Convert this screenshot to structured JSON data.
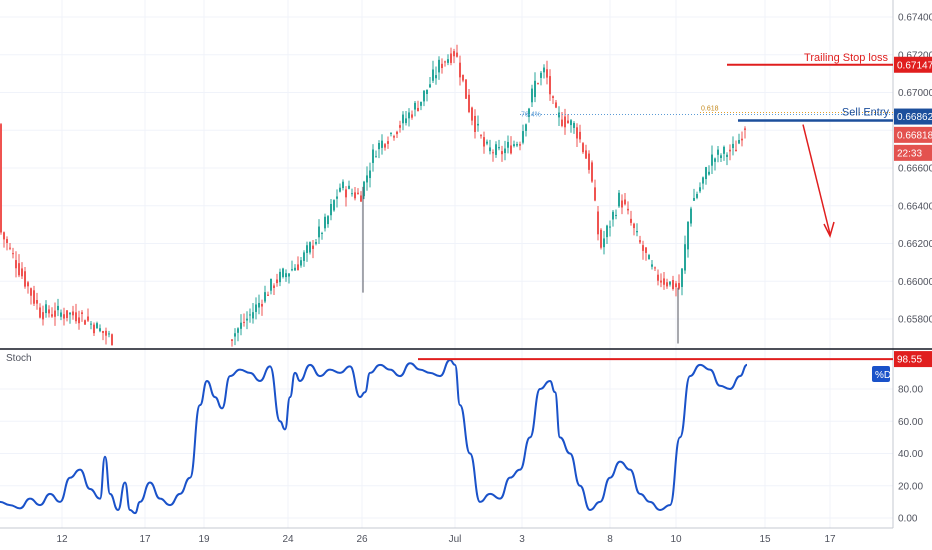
{
  "chart_data": [
    {
      "type": "candlestick",
      "panel": "price",
      "ylim": [
        0.657,
        0.675
      ],
      "y_ticks": [
        "0.67400",
        "0.67200",
        "0.67000",
        "0.66800",
        "0.66600",
        "0.66400",
        "0.66200",
        "0.66000",
        "0.65800"
      ],
      "x_ticks": [
        "12",
        "17",
        "19",
        "24",
        "26",
        "Jul",
        "3",
        "8",
        "10",
        "15",
        "17"
      ],
      "price_path": [
        [
          0,
          0.6627
        ],
        [
          40,
          0.6584
        ],
        [
          80,
          0.6582
        ],
        [
          110,
          0.657
        ],
        [
          230,
          0.657
        ],
        [
          250,
          0.6582
        ],
        [
          275,
          0.66
        ],
        [
          300,
          0.661
        ],
        [
          325,
          0.663
        ],
        [
          340,
          0.665
        ],
        [
          360,
          0.6645
        ],
        [
          375,
          0.667
        ],
        [
          400,
          0.6683
        ],
        [
          420,
          0.6695
        ],
        [
          440,
          0.6715
        ],
        [
          455,
          0.6722
        ],
        [
          470,
          0.669
        ],
        [
          485,
          0.667
        ],
        [
          500,
          0.6668
        ],
        [
          520,
          0.6675
        ],
        [
          535,
          0.6705
        ],
        [
          545,
          0.6712
        ],
        [
          555,
          0.6688
        ],
        [
          575,
          0.6682
        ],
        [
          590,
          0.666
        ],
        [
          600,
          0.6617
        ],
        [
          620,
          0.6645
        ],
        [
          635,
          0.6625
        ],
        [
          655,
          0.6603
        ],
        [
          680,
          0.6596
        ],
        [
          690,
          0.664
        ],
        [
          700,
          0.665
        ],
        [
          712,
          0.6665
        ],
        [
          725,
          0.6668
        ],
        [
          735,
          0.667
        ],
        [
          745,
          0.6683
        ]
      ],
      "wicks_low": [
        [
          363,
          0.6594
        ],
        [
          678,
          0.6567
        ]
      ],
      "annotations": {
        "trailing_stop_label": "Trailing Stop loss",
        "trailing_stop_price": 0.67147,
        "sell_entry_label": "Sell Entry",
        "sell_entry_price": 0.66862,
        "fib_label_1": "0.618",
        "fib_label_2": "76.4%"
      },
      "current_price": 0.66818,
      "timer": "22:33",
      "colors": {
        "up": "#26a69a",
        "down": "#ef5350",
        "stop": "#e01e1e",
        "entry": "#1c4f9c"
      }
    },
    {
      "type": "line",
      "panel": "indicator",
      "title": "Stoch",
      "series": [
        {
          "name": "%D",
          "color": "#1a52c9"
        }
      ],
      "ylim": [
        0,
        100
      ],
      "y_ticks": [
        "80.00",
        "60.00",
        "40.00",
        "20.00",
        "0.00"
      ],
      "level_value": 98.55,
      "x": [
        0,
        10,
        20,
        30,
        40,
        50,
        60,
        70,
        80,
        90,
        100,
        105,
        110,
        118,
        125,
        130,
        135,
        140,
        150,
        160,
        170,
        180,
        190,
        200,
        207,
        215,
        222,
        230,
        240,
        250,
        260,
        270,
        280,
        285,
        290,
        295,
        300,
        310,
        320,
        330,
        340,
        350,
        360,
        365,
        370,
        380,
        390,
        400,
        410,
        420,
        430,
        440,
        450,
        455,
        460,
        470,
        480,
        490,
        500,
        510,
        520,
        530,
        540,
        550,
        555,
        560,
        570,
        580,
        590,
        600,
        610,
        620,
        630,
        640,
        650,
        660,
        670,
        680,
        690,
        700,
        710,
        720,
        730,
        740,
        747
      ],
      "y": [
        10,
        8,
        6,
        12,
        8,
        15,
        10,
        25,
        30,
        18,
        12,
        38,
        15,
        5,
        22,
        5,
        3,
        10,
        22,
        12,
        8,
        15,
        25,
        70,
        85,
        75,
        68,
        88,
        92,
        90,
        85,
        94,
        60,
        55,
        75,
        90,
        85,
        95,
        88,
        92,
        90,
        94,
        75,
        78,
        90,
        95,
        92,
        88,
        96,
        92,
        90,
        88,
        98,
        95,
        70,
        40,
        10,
        15,
        12,
        25,
        30,
        50,
        80,
        85,
        78,
        50,
        40,
        20,
        5,
        10,
        25,
        35,
        30,
        15,
        10,
        5,
        8,
        50,
        88,
        95,
        92,
        82,
        80,
        88,
        95
      ]
    }
  ]
}
